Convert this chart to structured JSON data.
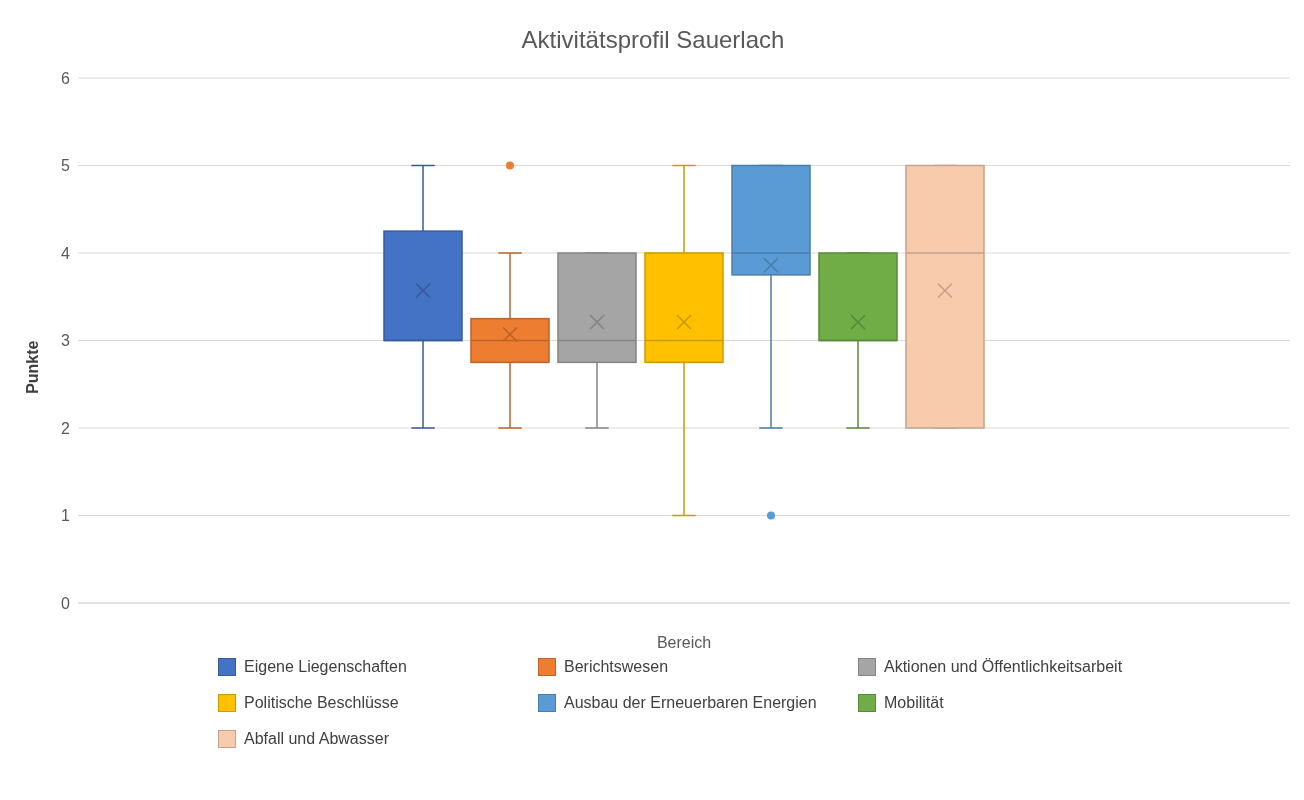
{
  "chart_data": {
    "type": "box",
    "title": "Aktivitätsprofil Sauerlach",
    "xlabel": "Bereich",
    "ylabel": "Punkte",
    "categories": [
      null
    ],
    "ylim": [
      0,
      6
    ],
    "yticks": [
      0,
      1,
      2,
      3,
      4,
      5,
      6
    ],
    "grid": "y",
    "legend": "bottom",
    "series": [
      {
        "name": "Eigene Liegenschaften",
        "color": "#4472c4",
        "boxes": [
          {
            "low": 2,
            "q1": 3,
            "median": 3,
            "q3": 4.25,
            "high": 5,
            "mean": 3.57
          }
        ]
      },
      {
        "name": "Berichtswesen",
        "color": "#ed7d31",
        "boxes": [
          {
            "low": 2,
            "q1": 2.75,
            "median": 3,
            "q3": 3.25,
            "high": 4,
            "mean": 3.07,
            "outliers": [
              5
            ]
          }
        ]
      },
      {
        "name": "Aktionen und Öffentlichkeitsarbeit",
        "color": "#a5a5a5",
        "boxes": [
          {
            "low": 2,
            "q1": 2.75,
            "median": 3,
            "q3": 4,
            "high": 4,
            "mean": 3.21
          }
        ]
      },
      {
        "name": "Politische Beschlüsse",
        "color": "#ffc000",
        "boxes": [
          {
            "low": 1,
            "q1": 2.75,
            "median": 3,
            "q3": 4,
            "high": 5,
            "mean": 3.21
          }
        ]
      },
      {
        "name": "Ausbau der Erneuerbaren Energien",
        "color": "#5b9bd5",
        "boxes": [
          {
            "low": 2,
            "q1": 3.75,
            "median": 4,
            "q3": 5,
            "high": 5,
            "mean": 3.86,
            "outliers": [
              1
            ]
          }
        ]
      },
      {
        "name": "Mobilität",
        "color": "#70ad47",
        "boxes": [
          {
            "low": 2,
            "q1": 3,
            "median": 3,
            "q3": 4,
            "high": 4,
            "mean": 3.21
          }
        ]
      },
      {
        "name": "Abfall und Abwasser",
        "color": "#f8cbad",
        "boxes": [
          {
            "low": 2,
            "q1": 2,
            "median": 4,
            "q3": 5,
            "high": 5,
            "mean": 3.57
          }
        ]
      }
    ]
  }
}
